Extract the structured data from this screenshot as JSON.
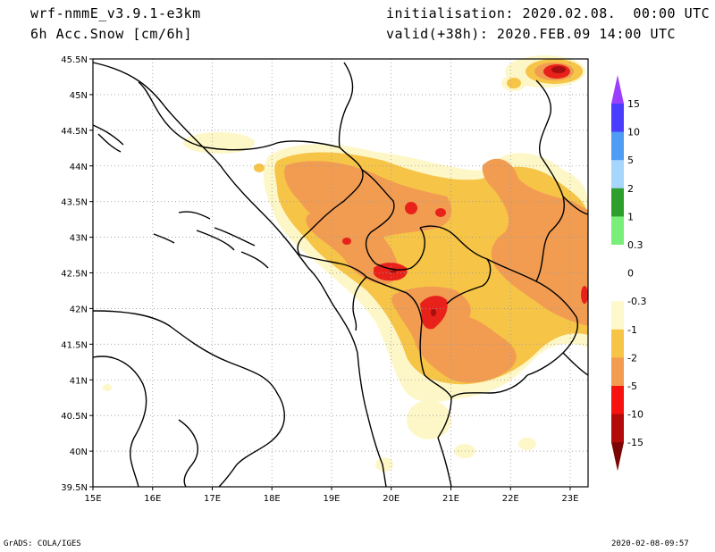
{
  "header": {
    "model": "wrf-nmmE_v3.9.1-e3km",
    "variable": "6h Acc.Snow [cm/6h]",
    "init": "initialisation: 2020.02.08.  00:00 UTC",
    "valid": "valid(+38h): 2020.FEB.09 14:00 UTC"
  },
  "map": {
    "lon_ticks": [
      "15E",
      "16E",
      "17E",
      "18E",
      "19E",
      "20E",
      "21E",
      "22E",
      "23E"
    ],
    "lat_ticks": [
      "39.5N",
      "40N",
      "40.5N",
      "41N",
      "41.5N",
      "42N",
      "42.5N",
      "43N",
      "43.5N",
      "44N",
      "44.5N",
      "45N",
      "45.5N"
    ],
    "lon_range": [
      15,
      23.3
    ],
    "lat_range": [
      39.5,
      45.5
    ],
    "grid": true,
    "snow_colors": {
      "light": "#fdf7c8",
      "yellow": "#f6c447",
      "orange": "#f29c52",
      "red": "#e8221a",
      "darkred": "#a60f10"
    }
  },
  "colorbar": {
    "labels": [
      "15",
      "10",
      "5",
      "2",
      "1",
      "0.3",
      "0",
      "-0.3",
      "-1",
      "-2",
      "-5",
      "-10",
      "-15"
    ],
    "colors": [
      "#4a3dff",
      "#4f9cf5",
      "#a6d6fb",
      "#2c9f2c",
      "#79ef79",
      "#ffffff",
      "#ffffff",
      "#fdf9cc",
      "#f6c447",
      "#f29c52",
      "#f5120f",
      "#b30a0a"
    ],
    "top_arrow_color": "#9b3fff",
    "bottom_arrow_color": "#7b0606"
  },
  "footer": {
    "left": "GrADS: COLA/IGES",
    "right": "2020-02-08-09:57"
  }
}
